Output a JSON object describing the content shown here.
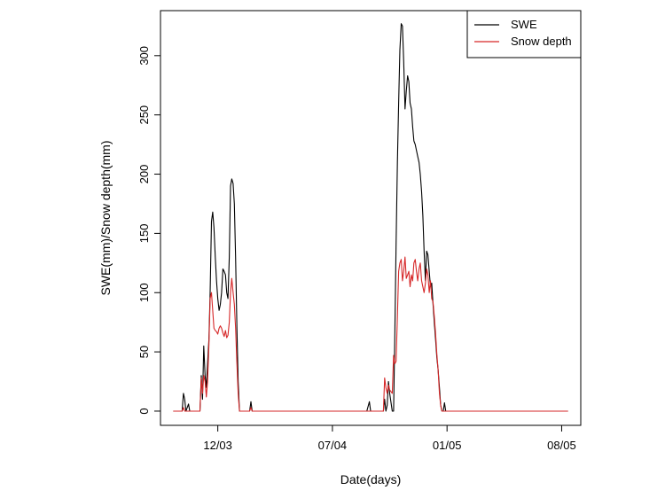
{
  "chart_data": {
    "type": "line",
    "xlabel": "Date(days)",
    "ylabel": "SWE(mm)/Snow depth(mm)",
    "x_ticks": [
      "12/03",
      "07/04",
      "01/05",
      "08/05"
    ],
    "y_ticks": [
      0,
      50,
      100,
      150,
      200,
      250,
      300
    ],
    "xlim": [
      0,
      660
    ],
    "ylim": [
      -12,
      338
    ],
    "grid": false,
    "legend": "top-right",
    "series": [
      {
        "name": "SWE",
        "color": "#000000",
        "points": [
          [
            20,
            0
          ],
          [
            34,
            0
          ],
          [
            36,
            15
          ],
          [
            38,
            10
          ],
          [
            40,
            0
          ],
          [
            44,
            6
          ],
          [
            46,
            0
          ],
          [
            62,
            0
          ],
          [
            64,
            30
          ],
          [
            66,
            10
          ],
          [
            68,
            55
          ],
          [
            70,
            30
          ],
          [
            72,
            20
          ],
          [
            74,
            40
          ],
          [
            76,
            60
          ],
          [
            78,
            100
          ],
          [
            80,
            160
          ],
          [
            82,
            168
          ],
          [
            84,
            155
          ],
          [
            86,
            130
          ],
          [
            88,
            110
          ],
          [
            90,
            95
          ],
          [
            92,
            85
          ],
          [
            94,
            90
          ],
          [
            96,
            100
          ],
          [
            98,
            120
          ],
          [
            100,
            118
          ],
          [
            102,
            115
          ],
          [
            104,
            100
          ],
          [
            106,
            95
          ],
          [
            108,
            130
          ],
          [
            110,
            190
          ],
          [
            112,
            196
          ],
          [
            114,
            192
          ],
          [
            116,
            175
          ],
          [
            118,
            130
          ],
          [
            120,
            70
          ],
          [
            122,
            25
          ],
          [
            124,
            0
          ],
          [
            140,
            0
          ],
          [
            142,
            8
          ],
          [
            144,
            0
          ],
          [
            320,
            0
          ],
          [
            324,
            0
          ],
          [
            328,
            8
          ],
          [
            330,
            0
          ],
          [
            350,
            0
          ],
          [
            352,
            10
          ],
          [
            354,
            0
          ],
          [
            356,
            5
          ],
          [
            358,
            25
          ],
          [
            360,
            15
          ],
          [
            364,
            0
          ],
          [
            366,
            0
          ],
          [
            368,
            65
          ],
          [
            370,
            140
          ],
          [
            372,
            210
          ],
          [
            374,
            260
          ],
          [
            376,
            305
          ],
          [
            378,
            327
          ],
          [
            380,
            325
          ],
          [
            382,
            295
          ],
          [
            384,
            255
          ],
          [
            386,
            270
          ],
          [
            388,
            283
          ],
          [
            390,
            278
          ],
          [
            392,
            260
          ],
          [
            394,
            255
          ],
          [
            396,
            240
          ],
          [
            398,
            228
          ],
          [
            400,
            225
          ],
          [
            402,
            220
          ],
          [
            404,
            215
          ],
          [
            406,
            210
          ],
          [
            408,
            200
          ],
          [
            410,
            185
          ],
          [
            412,
            165
          ],
          [
            414,
            135
          ],
          [
            416,
            110
          ],
          [
            418,
            135
          ],
          [
            420,
            132
          ],
          [
            422,
            118
          ],
          [
            424,
            105
          ],
          [
            426,
            108
          ],
          [
            428,
            90
          ],
          [
            430,
            75
          ],
          [
            432,
            60
          ],
          [
            434,
            45
          ],
          [
            436,
            35
          ],
          [
            438,
            20
          ],
          [
            440,
            5
          ],
          [
            442,
            0
          ],
          [
            444,
            0
          ],
          [
            446,
            7
          ],
          [
            448,
            0
          ],
          [
            640,
            0
          ]
        ]
      },
      {
        "name": "Snow depth",
        "color": "#d62728",
        "points": [
          [
            20,
            0
          ],
          [
            34,
            0
          ],
          [
            36,
            3
          ],
          [
            38,
            0
          ],
          [
            62,
            0
          ],
          [
            64,
            28
          ],
          [
            66,
            15
          ],
          [
            68,
            30
          ],
          [
            70,
            25
          ],
          [
            72,
            12
          ],
          [
            74,
            25
          ],
          [
            76,
            55
          ],
          [
            78,
            95
          ],
          [
            80,
            100
          ],
          [
            82,
            85
          ],
          [
            84,
            70
          ],
          [
            86,
            68
          ],
          [
            88,
            67
          ],
          [
            90,
            65
          ],
          [
            92,
            70
          ],
          [
            94,
            72
          ],
          [
            96,
            70
          ],
          [
            98,
            66
          ],
          [
            100,
            63
          ],
          [
            102,
            68
          ],
          [
            104,
            62
          ],
          [
            106,
            64
          ],
          [
            108,
            75
          ],
          [
            110,
            100
          ],
          [
            112,
            112
          ],
          [
            114,
            100
          ],
          [
            116,
            90
          ],
          [
            118,
            70
          ],
          [
            120,
            40
          ],
          [
            122,
            15
          ],
          [
            124,
            0
          ],
          [
            140,
            0
          ],
          [
            142,
            3
          ],
          [
            144,
            0
          ],
          [
            350,
            0
          ],
          [
            352,
            28
          ],
          [
            354,
            20
          ],
          [
            356,
            15
          ],
          [
            358,
            22
          ],
          [
            360,
            18
          ],
          [
            364,
            15
          ],
          [
            366,
            47
          ],
          [
            368,
            40
          ],
          [
            370,
            42
          ],
          [
            372,
            80
          ],
          [
            374,
            118
          ],
          [
            376,
            125
          ],
          [
            378,
            128
          ],
          [
            380,
            110
          ],
          [
            382,
            118
          ],
          [
            384,
            130
          ],
          [
            386,
            112
          ],
          [
            388,
            115
          ],
          [
            390,
            118
          ],
          [
            392,
            105
          ],
          [
            394,
            115
          ],
          [
            396,
            110
          ],
          [
            398,
            125
          ],
          [
            400,
            128
          ],
          [
            402,
            118
          ],
          [
            404,
            110
          ],
          [
            406,
            120
          ],
          [
            408,
            125
          ],
          [
            410,
            110
          ],
          [
            412,
            105
          ],
          [
            414,
            100
          ],
          [
            416,
            108
          ],
          [
            418,
            120
          ],
          [
            420,
            115
          ],
          [
            422,
            100
          ],
          [
            424,
            110
          ],
          [
            426,
            95
          ],
          [
            428,
            92
          ],
          [
            430,
            80
          ],
          [
            432,
            65
          ],
          [
            434,
            48
          ],
          [
            436,
            35
          ],
          [
            438,
            15
          ],
          [
            440,
            5
          ],
          [
            442,
            0
          ],
          [
            640,
            0
          ]
        ]
      }
    ]
  }
}
